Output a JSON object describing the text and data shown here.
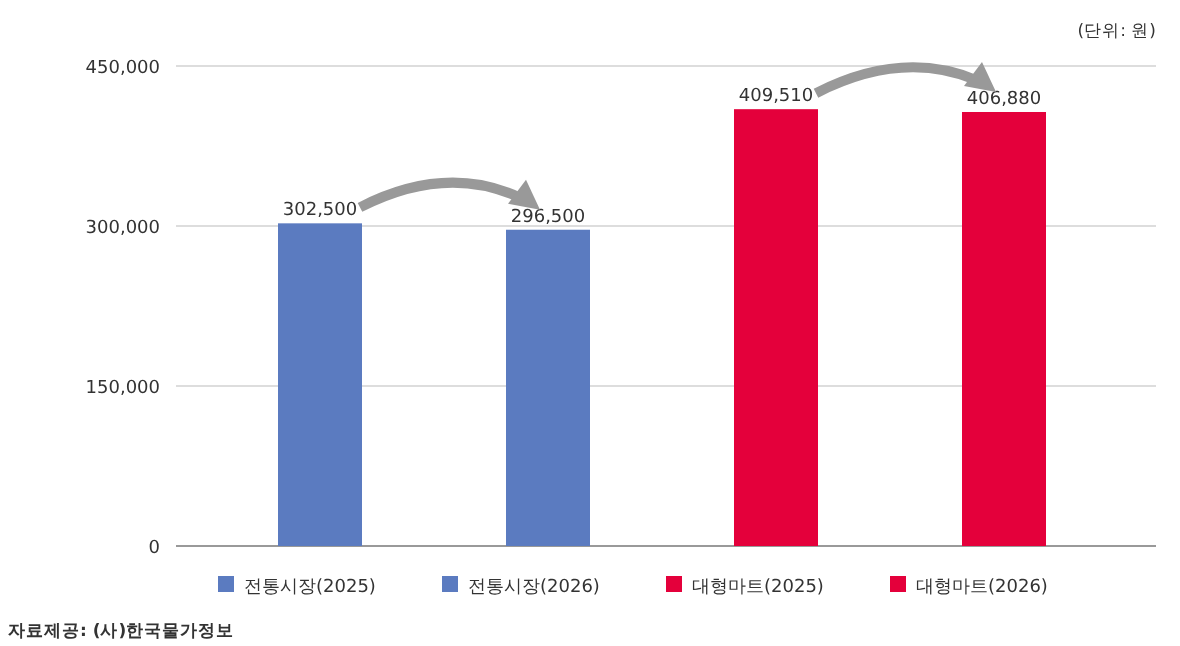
{
  "chart_data": {
    "type": "bar",
    "categories": [
      null,
      null,
      null,
      null
    ],
    "series": [
      {
        "name": "전통시장(2025)",
        "color": "#5b7bc0",
        "values": [
          302500,
          null,
          null,
          null
        ],
        "value_labels": [
          "302,500",
          null,
          null,
          null
        ]
      },
      {
        "name": "전통시장(2026)",
        "color": "#5b7bc0",
        "values": [
          null,
          296500,
          null,
          null
        ],
        "value_labels": [
          null,
          "296,500",
          null,
          null
        ]
      },
      {
        "name": "대형마트(2025)",
        "color": "#e4003b",
        "values": [
          null,
          null,
          409510,
          null
        ],
        "value_labels": [
          null,
          null,
          "409,510",
          null
        ]
      },
      {
        "name": "대형마트(2026)",
        "color": "#e4003b",
        "values": [
          null,
          null,
          null,
          406880
        ],
        "value_labels": [
          null,
          null,
          null,
          "406,880"
        ]
      }
    ],
    "ylim": [
      0,
      450000
    ],
    "yticks": [
      {
        "value": 0,
        "label": "0"
      },
      {
        "value": 150000,
        "label": "150,000"
      },
      {
        "value": 300000,
        "label": "300,000"
      },
      {
        "value": 450000,
        "label": "450,000"
      }
    ],
    "grid": "y",
    "legend": "bottom",
    "annotations": [
      "(단위: 원)",
      "자료제공: (사)한국물가정보"
    ]
  }
}
